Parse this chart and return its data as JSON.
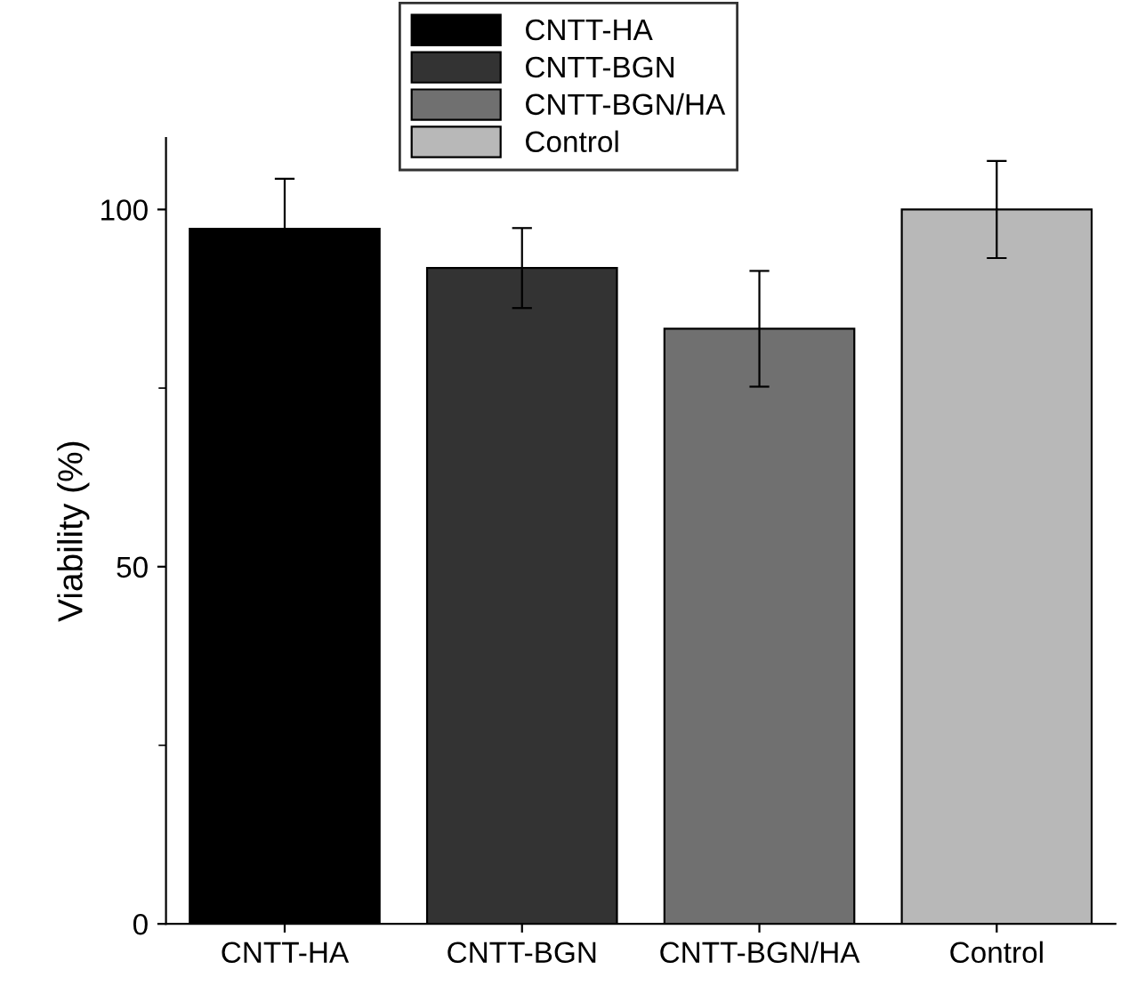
{
  "chart_data": {
    "type": "bar",
    "ylabel": "Viability (%)",
    "categories": [
      "CNTT-HA",
      "CNTT-BGN",
      "CNTT-BGN/HA",
      "Control"
    ],
    "series": [
      {
        "name": "CNTT-HA",
        "color": "#000000",
        "values": [
          97.3,
          null,
          null,
          null
        ],
        "errors": [
          7,
          null,
          null,
          null
        ]
      },
      {
        "name": "CNTT-BGN",
        "color": "#333333",
        "values": [
          null,
          91.8,
          null,
          null
        ],
        "errors": [
          null,
          5.6,
          null,
          null
        ]
      },
      {
        "name": "CNTT-BGN/HA",
        "color": "#707070",
        "values": [
          null,
          null,
          83.3,
          null
        ],
        "errors": [
          null,
          null,
          8.1,
          null
        ]
      },
      {
        "name": "Control",
        "color": "#b8b8b8",
        "values": [
          null,
          null,
          null,
          100
        ],
        "errors": [
          null,
          null,
          null,
          6.8
        ]
      }
    ],
    "ylim": [
      0,
      110
    ],
    "yticks": [
      0,
      50,
      100
    ],
    "legend": "top",
    "grid": false
  }
}
